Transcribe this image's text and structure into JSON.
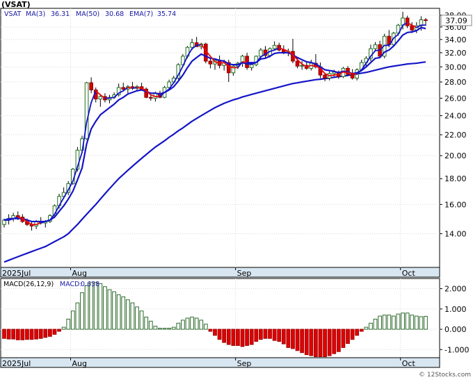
{
  "title": "(VSAT)",
  "watermark": "© 12Stocks.com",
  "chart_data": [
    {
      "type": "candlestick",
      "legend": {
        "ticker": "VSAT",
        "ma3_label": "MA(3)",
        "ma3_value": "36.31",
        "ma50_label": "MA(50)",
        "ma50_value": "30.68",
        "ema7_label": "EMA(7)",
        "ema7_value": "35.74"
      },
      "last_price_label": "37.09",
      "y_ticks": [
        "38.00",
        "36.00",
        "34.00",
        "32.00",
        "30.00",
        "28.00",
        "26.00",
        "24.00",
        "22.00",
        "20.00",
        "18.00",
        "16.00",
        "14.00"
      ],
      "y_tick_values": [
        38,
        36,
        34,
        32,
        30,
        28,
        26,
        24,
        22,
        20,
        18,
        16,
        14
      ],
      "y_scale": "log",
      "ylim": [
        12.0,
        39.2
      ],
      "x_ticks": [
        {
          "label": "2025Jul",
          "index": 0
        },
        {
          "label": "Aug",
          "index": 15
        },
        {
          "label": "Sep",
          "index": 51
        },
        {
          "label": "Oct",
          "index": 87
        }
      ],
      "grid": true,
      "candles": [
        [
          14.6,
          15.0,
          14.4,
          14.9
        ],
        [
          14.9,
          15.3,
          14.6,
          15.0
        ],
        [
          15.0,
          15.4,
          14.8,
          15.2
        ],
        [
          15.2,
          15.5,
          14.9,
          15.1
        ],
        [
          15.1,
          15.3,
          14.7,
          14.8
        ],
        [
          14.8,
          15.0,
          14.5,
          14.6
        ],
        [
          14.6,
          14.8,
          14.2,
          14.5
        ],
        [
          14.5,
          14.9,
          14.3,
          14.8
        ],
        [
          14.8,
          15.1,
          14.6,
          14.7
        ],
        [
          14.7,
          14.9,
          14.4,
          14.8
        ],
        [
          14.8,
          15.3,
          14.7,
          15.2
        ],
        [
          15.2,
          16.0,
          15.1,
          15.9
        ],
        [
          15.9,
          16.8,
          15.7,
          16.6
        ],
        [
          16.6,
          17.3,
          16.4,
          16.9
        ],
        [
          16.9,
          17.8,
          16.7,
          17.6
        ],
        [
          17.6,
          18.9,
          17.5,
          18.8
        ],
        [
          18.8,
          20.8,
          18.6,
          20.5
        ],
        [
          20.5,
          21.9,
          20.2,
          21.6
        ],
        [
          21.6,
          28.0,
          21.5,
          27.9
        ],
        [
          27.9,
          28.6,
          26.6,
          27.0
        ],
        [
          27.0,
          27.3,
          25.5,
          25.9
        ],
        [
          25.9,
          26.5,
          25.0,
          26.2
        ],
        [
          26.2,
          26.6,
          25.5,
          25.8
        ],
        [
          25.8,
          26.4,
          25.4,
          26.1
        ],
        [
          26.1,
          26.7,
          25.9,
          26.4
        ],
        [
          26.4,
          27.8,
          26.2,
          27.3
        ],
        [
          27.3,
          27.9,
          26.8,
          27.1
        ],
        [
          27.1,
          27.6,
          26.6,
          27.4
        ],
        [
          27.4,
          28.0,
          27.0,
          27.2
        ],
        [
          27.2,
          27.6,
          26.8,
          27.4
        ],
        [
          27.4,
          27.9,
          27.0,
          27.1
        ],
        [
          27.1,
          27.3,
          26.0,
          26.1
        ],
        [
          26.1,
          26.4,
          25.7,
          26.0
        ],
        [
          26.0,
          26.8,
          25.6,
          26.6
        ],
        [
          26.6,
          26.9,
          26.0,
          26.1
        ],
        [
          26.1,
          27.5,
          26.0,
          27.3
        ],
        [
          27.3,
          28.3,
          27.1,
          28.0
        ],
        [
          28.0,
          28.8,
          27.8,
          28.5
        ],
        [
          28.5,
          30.5,
          28.3,
          30.3
        ],
        [
          30.3,
          31.8,
          30.0,
          31.5
        ],
        [
          31.5,
          33.0,
          31.2,
          32.8
        ],
        [
          32.8,
          34.1,
          32.4,
          33.5
        ],
        [
          33.5,
          34.4,
          33.0,
          32.9
        ],
        [
          32.9,
          33.5,
          32.5,
          33.3
        ],
        [
          33.3,
          33.5,
          30.5,
          30.8
        ],
        [
          30.8,
          31.3,
          29.8,
          30.4
        ],
        [
          30.4,
          31.1,
          29.6,
          30.9
        ],
        [
          30.9,
          31.6,
          29.8,
          30.2
        ],
        [
          30.2,
          31.0,
          29.5,
          30.6
        ],
        [
          30.6,
          31.0,
          28.0,
          29.2
        ],
        [
          29.2,
          30.4,
          28.8,
          30.1
        ],
        [
          30.1,
          30.7,
          29.7,
          30.5
        ],
        [
          30.5,
          31.7,
          30.0,
          31.5
        ],
        [
          31.5,
          32.0,
          29.6,
          29.9
        ],
        [
          29.9,
          30.5,
          29.5,
          30.3
        ],
        [
          30.3,
          31.6,
          30.1,
          31.5
        ],
        [
          31.5,
          32.7,
          31.0,
          32.4
        ],
        [
          32.4,
          33.0,
          31.2,
          31.6
        ],
        [
          31.6,
          32.8,
          31.3,
          32.6
        ],
        [
          32.6,
          33.7,
          32.3,
          33.1
        ],
        [
          33.1,
          33.5,
          32.2,
          32.4
        ],
        [
          32.4,
          33.1,
          31.8,
          32.0
        ],
        [
          32.0,
          32.6,
          31.5,
          32.2
        ],
        [
          32.2,
          34.1,
          30.5,
          30.8
        ],
        [
          30.8,
          31.3,
          29.8,
          30.1
        ],
        [
          30.1,
          30.8,
          29.6,
          30.2
        ],
        [
          30.2,
          30.7,
          29.6,
          29.8
        ],
        [
          29.8,
          31.0,
          29.5,
          30.5
        ],
        [
          30.5,
          31.8,
          29.8,
          30.0
        ],
        [
          30.0,
          30.6,
          28.5,
          28.9
        ],
        [
          28.9,
          29.2,
          28.1,
          28.5
        ],
        [
          28.5,
          29.4,
          28.2,
          29.1
        ],
        [
          29.1,
          29.6,
          28.7,
          29.3
        ],
        [
          29.3,
          29.5,
          28.4,
          28.7
        ],
        [
          28.7,
          30.0,
          28.5,
          29.8
        ],
        [
          29.8,
          30.1,
          28.8,
          29.0
        ],
        [
          29.0,
          29.7,
          28.3,
          28.5
        ],
        [
          28.5,
          29.8,
          28.2,
          29.6
        ],
        [
          29.6,
          31.0,
          29.4,
          30.6
        ],
        [
          30.6,
          31.5,
          30.1,
          31.2
        ],
        [
          31.2,
          33.2,
          30.8,
          32.6
        ],
        [
          32.6,
          33.6,
          32.3,
          33.2
        ],
        [
          33.2,
          33.8,
          31.3,
          31.5
        ],
        [
          31.5,
          34.9,
          31.2,
          34.5
        ],
        [
          34.5,
          35.5,
          32.8,
          33.2
        ],
        [
          33.2,
          35.2,
          33.0,
          35.0
        ],
        [
          35.0,
          36.5,
          34.6,
          36.3
        ],
        [
          36.3,
          38.6,
          35.6,
          37.5
        ],
        [
          37.5,
          37.9,
          35.8,
          36.2
        ],
        [
          36.2,
          36.8,
          35.0,
          35.5
        ],
        [
          35.5,
          36.8,
          35.0,
          36.2
        ],
        [
          36.2,
          37.8,
          35.4,
          37.2
        ],
        [
          37.2,
          37.5,
          36.2,
          37.09
        ]
      ],
      "ma3": [
        14.9,
        15.0,
        15.0,
        15.1,
        15.0,
        14.8,
        14.6,
        14.6,
        14.7,
        14.8,
        14.9,
        15.3,
        15.9,
        16.5,
        17.1,
        17.8,
        19.0,
        20.3,
        23.3,
        25.5,
        26.9,
        26.4,
        26.0,
        26.0,
        26.1,
        26.6,
        26.9,
        27.3,
        27.2,
        27.3,
        27.2,
        26.9,
        26.4,
        26.2,
        26.2,
        26.7,
        27.1,
        27.9,
        28.9,
        30.1,
        31.5,
        32.6,
        33.1,
        33.2,
        32.3,
        31.5,
        30.7,
        30.5,
        30.6,
        30.0,
        29.9,
        29.9,
        30.7,
        30.6,
        30.6,
        30.6,
        31.4,
        31.8,
        32.2,
        32.4,
        32.7,
        32.5,
        32.2,
        31.7,
        31.0,
        30.4,
        30.0,
        30.2,
        30.1,
        29.8,
        29.1,
        28.8,
        28.9,
        29.0,
        29.3,
        29.2,
        29.1,
        29.0,
        29.6,
        30.5,
        31.5,
        32.3,
        32.4,
        33.1,
        33.1,
        34.2,
        34.8,
        36.3,
        36.7,
        36.3,
        35.9,
        36.3,
        36.31
      ],
      "ema7": [
        14.9,
        14.9,
        15.0,
        15.0,
        15.0,
        14.9,
        14.8,
        14.8,
        14.8,
        14.8,
        14.9,
        15.1,
        15.5,
        15.9,
        16.4,
        17.0,
        17.9,
        18.9,
        21.1,
        22.6,
        23.4,
        24.1,
        24.5,
        24.9,
        25.3,
        25.8,
        26.1,
        26.5,
        26.7,
        26.9,
        27.0,
        26.8,
        26.6,
        26.6,
        26.5,
        26.7,
        27.0,
        27.4,
        28.1,
        28.9,
        29.9,
        30.8,
        31.3,
        31.8,
        31.5,
        31.2,
        31.1,
        30.9,
        30.8,
        30.4,
        30.3,
        30.3,
        30.6,
        30.4,
        30.4,
        30.6,
        31.1,
        31.2,
        31.5,
        31.9,
        32.0,
        32.0,
        32.0,
        31.7,
        31.3,
        31.0,
        30.7,
        30.6,
        30.4,
        30.0,
        29.6,
        29.5,
        29.4,
        29.2,
        29.4,
        29.3,
        29.1,
        29.2,
        29.5,
        30.0,
        30.6,
        31.2,
        31.3,
        32.1,
        32.4,
        33.0,
        33.8,
        34.7,
        35.1,
        35.2,
        35.4,
        35.9,
        35.74
      ],
      "ma50": [
        12.3,
        12.4,
        12.5,
        12.6,
        12.7,
        12.8,
        12.9,
        13.0,
        13.1,
        13.2,
        13.35,
        13.5,
        13.65,
        13.8,
        14.0,
        14.3,
        14.6,
        14.95,
        15.3,
        15.65,
        16.0,
        16.4,
        16.8,
        17.2,
        17.6,
        18.0,
        18.35,
        18.7,
        19.05,
        19.4,
        19.75,
        20.1,
        20.45,
        20.8,
        21.1,
        21.4,
        21.75,
        22.05,
        22.4,
        22.7,
        23.05,
        23.4,
        23.7,
        24.0,
        24.3,
        24.6,
        24.9,
        25.15,
        25.4,
        25.6,
        25.8,
        25.95,
        26.15,
        26.3,
        26.45,
        26.6,
        26.75,
        26.9,
        27.05,
        27.2,
        27.35,
        27.5,
        27.65,
        27.8,
        27.9,
        28.0,
        28.1,
        28.2,
        28.3,
        28.35,
        28.45,
        28.5,
        28.6,
        28.7,
        28.75,
        28.85,
        28.95,
        29.05,
        29.15,
        29.25,
        29.4,
        29.55,
        29.7,
        29.85,
        30.0,
        30.1,
        30.2,
        30.3,
        30.4,
        30.45,
        30.5,
        30.6,
        30.68
      ]
    },
    {
      "type": "bar",
      "legend": {
        "label": "MACD(26,12,9)",
        "value_label": "MACD:",
        "value": "0.638"
      },
      "y_ticks": [
        "2.000",
        "1.000",
        "0.000",
        "-1.000"
      ],
      "y_tick_values": [
        2,
        1,
        0,
        -1
      ],
      "ylim": [
        -1.4,
        2.5
      ],
      "grid": true,
      "values": [
        -0.45,
        -0.48,
        -0.48,
        -0.52,
        -0.52,
        -0.5,
        -0.5,
        -0.48,
        -0.45,
        -0.4,
        -0.35,
        -0.25,
        -0.1,
        0.1,
        0.5,
        0.9,
        1.3,
        1.8,
        2.15,
        2.3,
        2.3,
        2.25,
        2.1,
        1.95,
        1.85,
        1.7,
        1.6,
        1.45,
        1.3,
        1.1,
        0.9,
        0.6,
        0.4,
        0.15,
        0.05,
        0.05,
        0.05,
        0.1,
        0.3,
        0.45,
        0.55,
        0.6,
        0.55,
        0.45,
        0.25,
        -0.1,
        -0.3,
        -0.5,
        -0.65,
        -0.75,
        -0.8,
        -0.8,
        -0.85,
        -0.8,
        -0.75,
        -0.6,
        -0.5,
        -0.45,
        -0.45,
        -0.55,
        -0.6,
        -0.72,
        -0.9,
        -0.95,
        -1.05,
        -1.15,
        -1.25,
        -1.3,
        -1.35,
        -1.35,
        -1.35,
        -1.3,
        -1.2,
        -1.1,
        -0.9,
        -0.7,
        -0.5,
        -0.3,
        -0.1,
        0.1,
        0.3,
        0.5,
        0.65,
        0.7,
        0.7,
        0.65,
        0.75,
        0.8,
        0.8,
        0.7,
        0.65,
        0.62,
        0.638
      ]
    }
  ]
}
